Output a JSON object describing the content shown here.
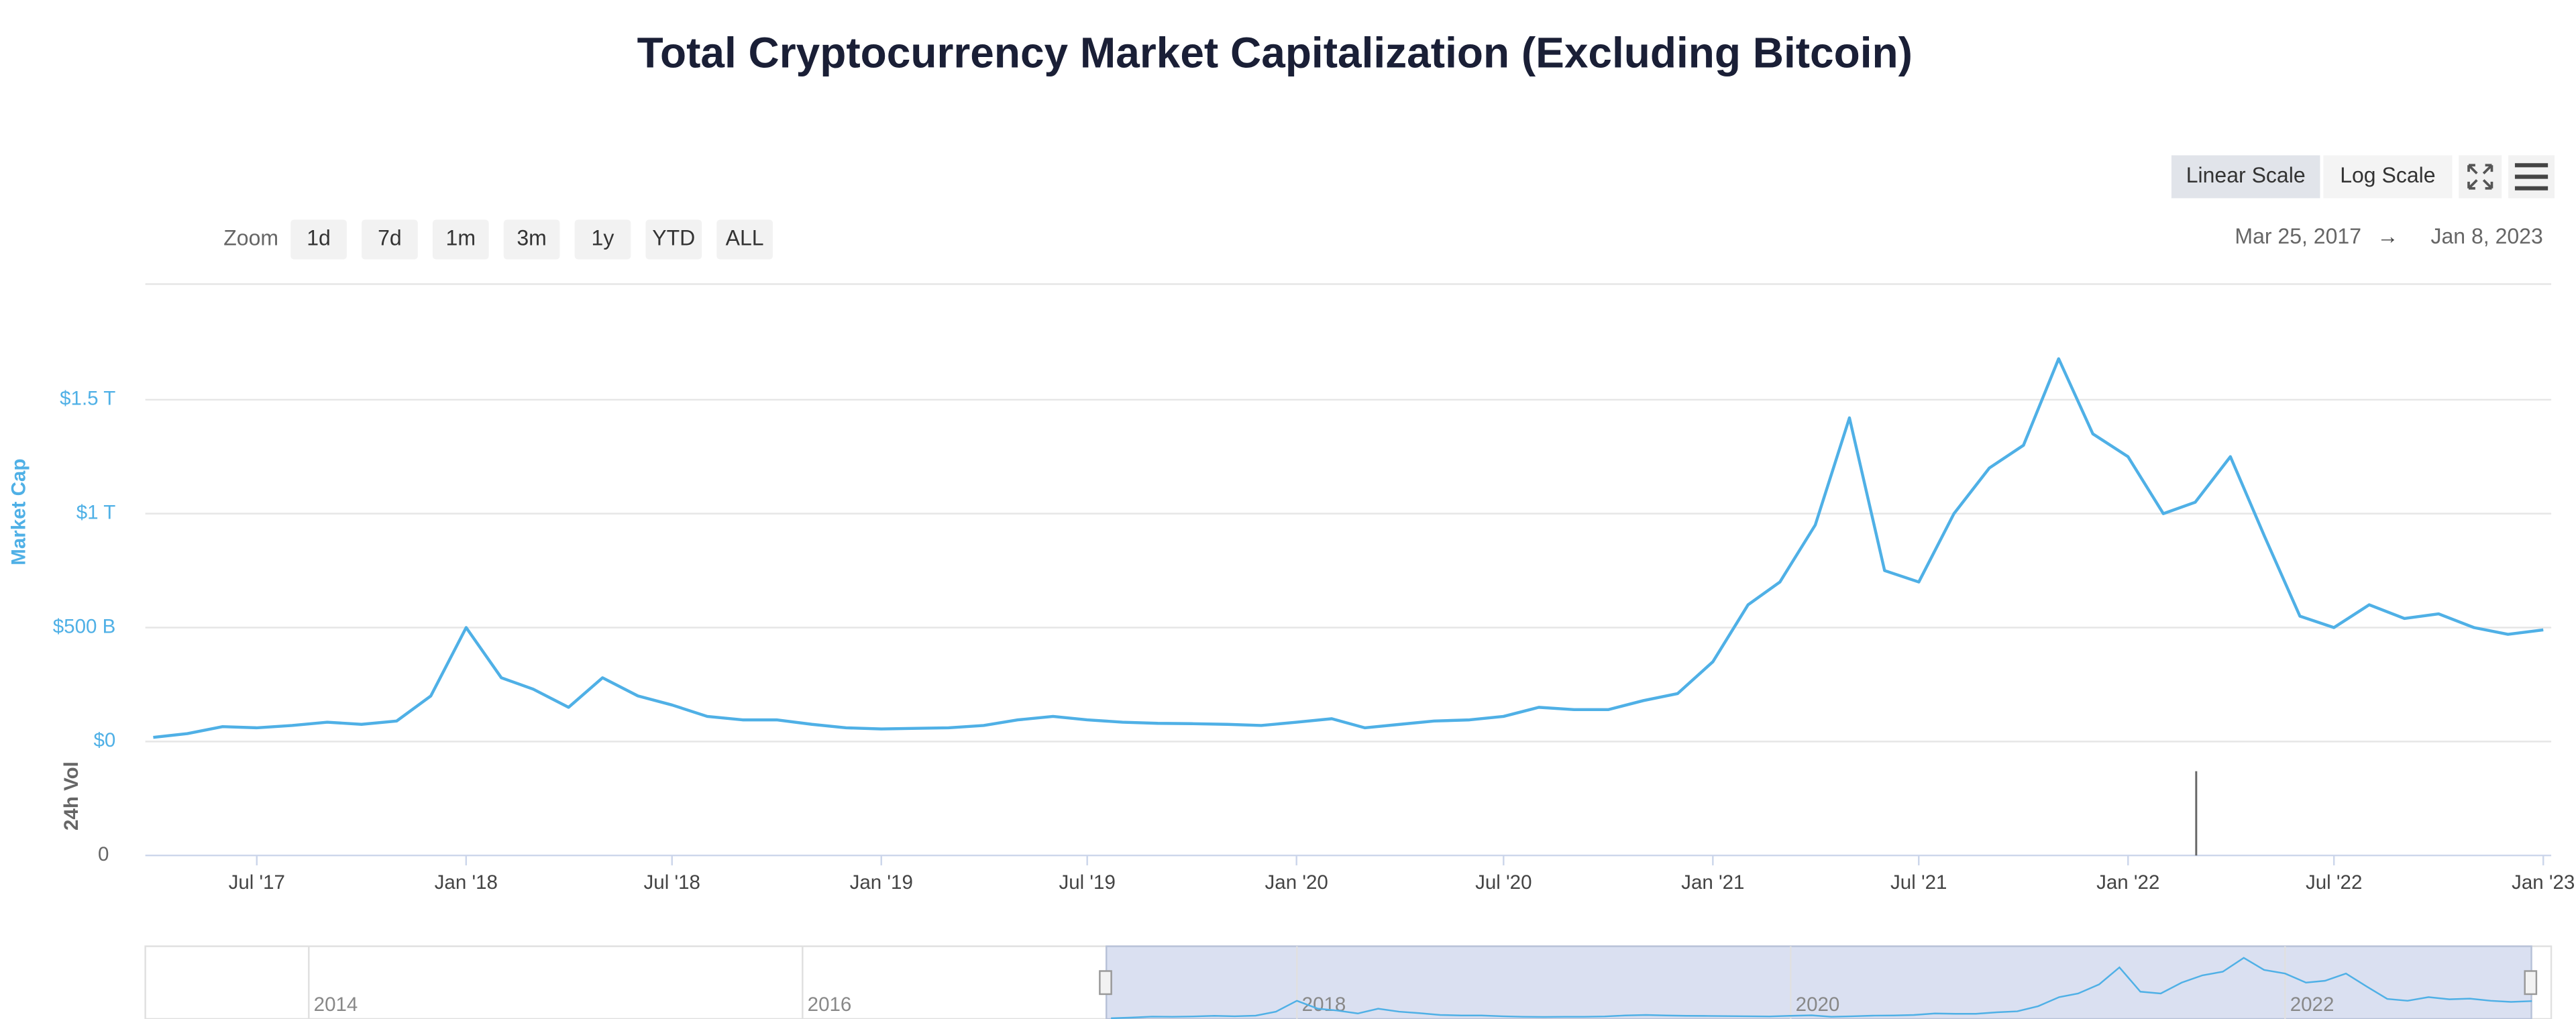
{
  "chart_data": {
    "type": "line",
    "title": "Total Cryptocurrency Market Capitalization (Excluding Bitcoin)",
    "y_label": "Market Cap",
    "volume_label": "24h Vol",
    "volume_yticks": [
      0
    ],
    "zoom_label": "Zoom",
    "zoom_buttons": [
      "1d",
      "7d",
      "1m",
      "3m",
      "1y",
      "YTD",
      "ALL"
    ],
    "scale_buttons": [
      "Linear Scale",
      "Log Scale"
    ],
    "range_from": "Mar 25, 2017",
    "range_arrow": "→",
    "range_to": "Jan 8, 2023",
    "color": "#4fb0e6",
    "grid": true,
    "log_scale": false,
    "xlim": [
      "2017-03-25",
      "2023-01-08"
    ],
    "xticks": [
      {
        "value": "2017-07",
        "label": "Jul '17"
      },
      {
        "value": "2018-01",
        "label": "Jan '18"
      },
      {
        "value": "2018-07",
        "label": "Jul '18"
      },
      {
        "value": "2019-01",
        "label": "Jan '19"
      },
      {
        "value": "2019-07",
        "label": "Jul '19"
      },
      {
        "value": "2020-01",
        "label": "Jan '20"
      },
      {
        "value": "2020-07",
        "label": "Jul '20"
      },
      {
        "value": "2021-01",
        "label": "Jan '21"
      },
      {
        "value": "2021-07",
        "label": "Jul '21"
      },
      {
        "value": "2022-01",
        "label": "Jan '22"
      },
      {
        "value": "2022-07",
        "label": "Jul '22"
      },
      {
        "value": "2023-01",
        "label": "Jan '23"
      }
    ],
    "ylim": [
      0,
      2000
    ],
    "yticks": [
      {
        "value": 0,
        "label": "$0"
      },
      {
        "value": 500,
        "label": "$500 B"
      },
      {
        "value": 1000,
        "label": "$1 T"
      },
      {
        "value": 1500,
        "label": "$1.5 T"
      }
    ],
    "navigator_xticks": [
      {
        "value": "2014",
        "label": "2014"
      },
      {
        "value": "2016",
        "label": "2016"
      },
      {
        "value": "2018",
        "label": "2018"
      },
      {
        "value": "2020",
        "label": "2020"
      },
      {
        "value": "2022",
        "label": "2022"
      }
    ],
    "x": [
      "2017-04",
      "2017-05",
      "2017-06",
      "2017-07",
      "2017-08",
      "2017-09",
      "2017-10",
      "2017-11",
      "2017-12",
      "2018-01",
      "2018-02",
      "2018-03",
      "2018-04",
      "2018-05",
      "2018-06",
      "2018-07",
      "2018-08",
      "2018-09",
      "2018-10",
      "2018-11",
      "2018-12",
      "2019-01",
      "2019-02",
      "2019-03",
      "2019-04",
      "2019-05",
      "2019-06",
      "2019-07",
      "2019-08",
      "2019-09",
      "2019-10",
      "2019-11",
      "2019-12",
      "2020-01",
      "2020-02",
      "2020-03",
      "2020-04",
      "2020-05",
      "2020-06",
      "2020-07",
      "2020-08",
      "2020-09",
      "2020-10",
      "2020-11",
      "2020-12",
      "2021-01",
      "2021-02",
      "2021-03",
      "2021-04",
      "2021-05",
      "2021-06",
      "2021-07",
      "2021-08",
      "2021-09",
      "2021-10",
      "2021-11",
      "2021-12",
      "2022-01",
      "2022-02",
      "2022-03",
      "2022-04",
      "2022-05",
      "2022-06",
      "2022-07",
      "2022-08",
      "2022-09",
      "2022-10",
      "2022-11",
      "2022-12",
      "2023-01"
    ],
    "values": [
      18,
      35,
      65,
      60,
      70,
      85,
      75,
      90,
      200,
      500,
      280,
      230,
      150,
      280,
      200,
      160,
      110,
      95,
      95,
      75,
      60,
      55,
      58,
      60,
      70,
      95,
      110,
      95,
      85,
      80,
      78,
      75,
      70,
      85,
      100,
      60,
      75,
      90,
      95,
      110,
      150,
      140,
      140,
      180,
      210,
      350,
      600,
      700,
      950,
      1420,
      750,
      700,
      1000,
      1200,
      1300,
      1680,
      1350,
      1250,
      1000,
      1050,
      1250,
      900,
      550,
      500,
      600,
      540,
      560,
      500,
      470,
      490
    ]
  }
}
